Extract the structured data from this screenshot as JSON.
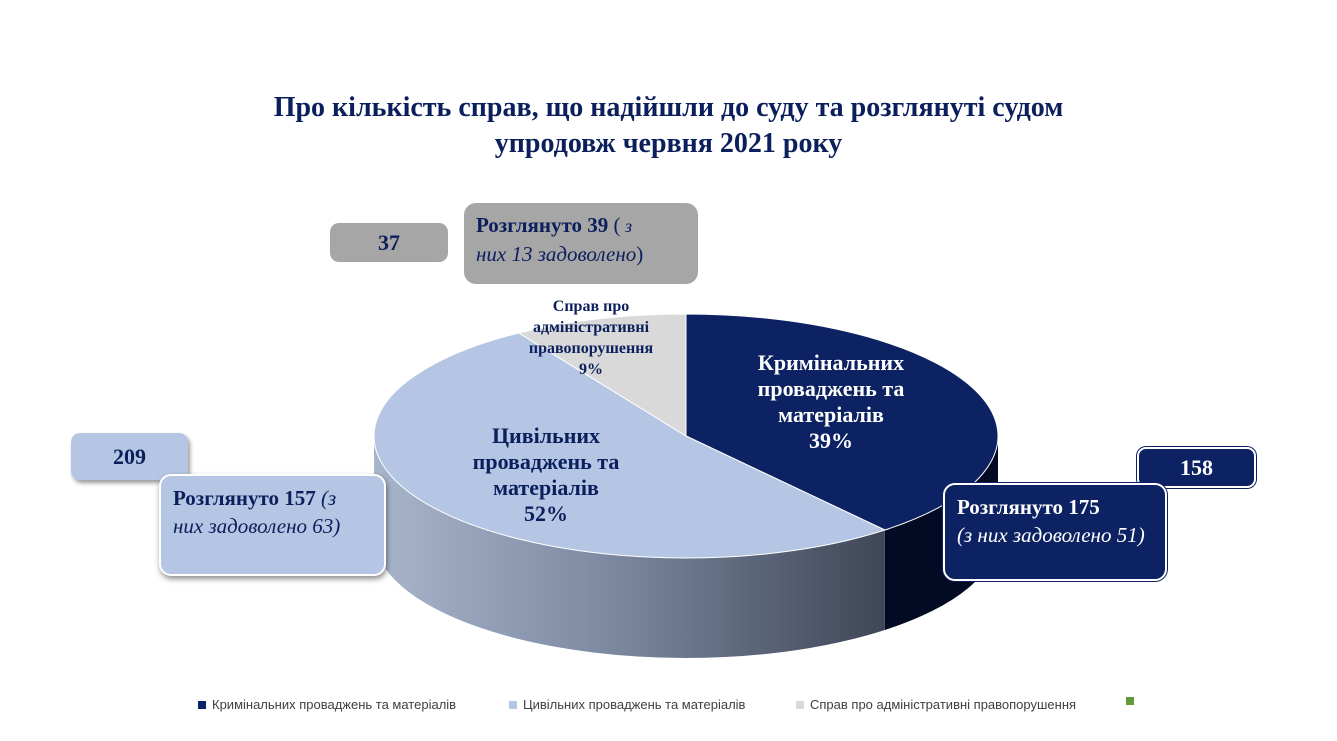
{
  "title": {
    "line1": "Про кількість справ, що надійшли до суду та розглянуті судом",
    "line2": "упродовж червня  2021 року"
  },
  "colors": {
    "criminal": "#0d2262",
    "civil": "#b4c6e4",
    "admin": "#d9d9d9",
    "extra": "#5e9a3a",
    "title": "#0b1f5c"
  },
  "chart_data": {
    "type": "pie",
    "title": "Про кількість справ, що надійшли до суду та розглянуті судом упродовж червня  2021 року",
    "categories": [
      "Кримінальних проваджень та матеріалів",
      "Цивільних проваджень та матеріалів",
      "Справ про адміністративні правопорушення"
    ],
    "values": [
      39,
      52,
      9
    ],
    "percent_labels": [
      "39%",
      "52%",
      "9%"
    ],
    "received": [
      158,
      209,
      37
    ],
    "legend_position": "bottom",
    "three_d": true
  },
  "slice_labels": {
    "criminal": {
      "line1": "Кримінальних",
      "line2": "проваджень та",
      "line3": "матеріалів",
      "pct": "39%"
    },
    "civil": {
      "line1": "Цивільних",
      "line2": "проваджень та",
      "line3": "матеріалів",
      "pct": "52%"
    },
    "admin": {
      "line1": "Справ про",
      "line2": "адміністративні",
      "line3": "правопорушення",
      "pct": "9%"
    }
  },
  "callouts": {
    "criminal_received": "158",
    "civil_received": "209",
    "admin_received": "37",
    "criminal_reviewed": {
      "bold": "Розглянуто 175",
      "italic": "(з них задоволено 51)"
    },
    "civil_reviewed": {
      "bold": "Розглянуто 157",
      "italic_a": " (з",
      "italic_b": "них задоволено 63)"
    },
    "admin_reviewed": {
      "bold": "Розглянуто 39",
      "plain_a": " (",
      "italic_a": " з",
      "italic_b": "них 13 задоволено",
      "plain_b": ")"
    }
  },
  "legend": [
    {
      "label": "Кримінальних проваджень та матеріалів",
      "color": "#0d2262"
    },
    {
      "label": "Цивільних проваджень та матеріалів",
      "color": "#b4c6e4"
    },
    {
      "label": "Справ про адміністративні правопорушення",
      "color": "#d9d9d9"
    },
    {
      "label": "",
      "color": "#5e9a3a"
    }
  ]
}
